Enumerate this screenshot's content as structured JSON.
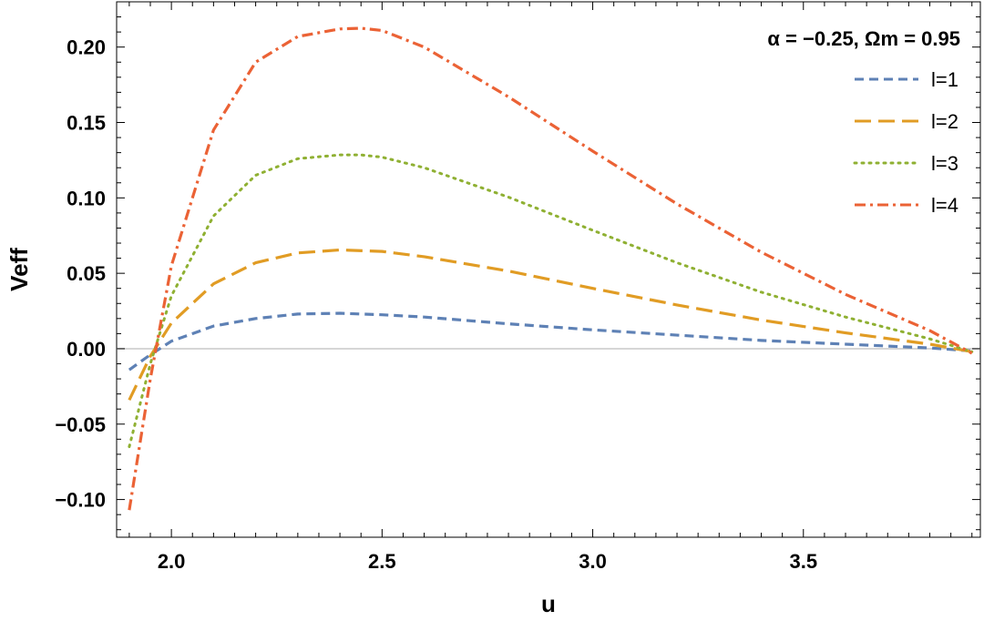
{
  "chart_data": {
    "type": "line",
    "title": "α = −0.25, Ωm = 0.95",
    "xlabel": "u",
    "ylabel": "Veff",
    "xlim": [
      1.87,
      3.92
    ],
    "ylim": [
      -0.125,
      0.23
    ],
    "x_ticks": [
      {
        "value": 2.0,
        "label": "2.0"
      },
      {
        "value": 2.5,
        "label": "2.5"
      },
      {
        "value": 3.0,
        "label": "3.0"
      },
      {
        "value": 3.5,
        "label": "3.5"
      }
    ],
    "y_ticks": [
      {
        "value": 0.2,
        "label": "0.20"
      },
      {
        "value": 0.15,
        "label": "0.15"
      },
      {
        "value": 0.1,
        "label": "0.10"
      },
      {
        "value": 0.05,
        "label": "0.05"
      },
      {
        "value": 0.0,
        "label": "0.00"
      },
      {
        "value": -0.05,
        "label": "−0.05"
      },
      {
        "value": -0.1,
        "label": "−0.10"
      }
    ],
    "grid": false,
    "zero_line": true,
    "legend_position": "top-right",
    "series": [
      {
        "name": "l=1",
        "color": "#5e81b5",
        "dash": "dashed",
        "x": [
          1.9,
          1.95,
          2.0,
          2.1,
          2.2,
          2.3,
          2.4,
          2.5,
          2.6,
          2.8,
          3.0,
          3.2,
          3.4,
          3.6,
          3.8,
          3.9
        ],
        "y": [
          -0.014,
          -0.004,
          0.005,
          0.015,
          0.02,
          0.023,
          0.0235,
          0.0225,
          0.021,
          0.0165,
          0.0125,
          0.009,
          0.0055,
          0.003,
          0.0005,
          -0.0015
        ]
      },
      {
        "name": "l=2",
        "color": "#e19c24",
        "dash": "long-dashed",
        "x": [
          1.9,
          1.95,
          2.0,
          2.1,
          2.2,
          2.3,
          2.4,
          2.5,
          2.6,
          2.8,
          3.0,
          3.2,
          3.4,
          3.6,
          3.8,
          3.9
        ],
        "y": [
          -0.034,
          -0.005,
          0.017,
          0.043,
          0.057,
          0.0635,
          0.0655,
          0.0645,
          0.061,
          0.0515,
          0.04,
          0.029,
          0.019,
          0.0105,
          0.003,
          -0.002
        ]
      },
      {
        "name": "l=3",
        "color": "#8fb032",
        "dash": "dotted",
        "x": [
          1.9,
          1.95,
          2.0,
          2.1,
          2.2,
          2.3,
          2.4,
          2.45,
          2.5,
          2.6,
          2.8,
          3.0,
          3.2,
          3.4,
          3.6,
          3.8,
          3.9
        ],
        "y": [
          -0.065,
          -0.01,
          0.035,
          0.088,
          0.115,
          0.126,
          0.1285,
          0.1285,
          0.127,
          0.12,
          0.1005,
          0.0785,
          0.057,
          0.0375,
          0.021,
          0.0065,
          -0.002
        ]
      },
      {
        "name": "l=4",
        "color": "#eb6235",
        "dash": "dash-dot",
        "x": [
          1.9,
          1.95,
          2.0,
          2.1,
          2.2,
          2.3,
          2.4,
          2.45,
          2.5,
          2.6,
          2.8,
          3.0,
          3.2,
          3.4,
          3.6,
          3.8,
          3.9
        ],
        "y": [
          -0.107,
          -0.02,
          0.055,
          0.145,
          0.19,
          0.207,
          0.212,
          0.2125,
          0.211,
          0.2,
          0.167,
          0.131,
          0.096,
          0.064,
          0.036,
          0.012,
          -0.003
        ]
      }
    ]
  }
}
